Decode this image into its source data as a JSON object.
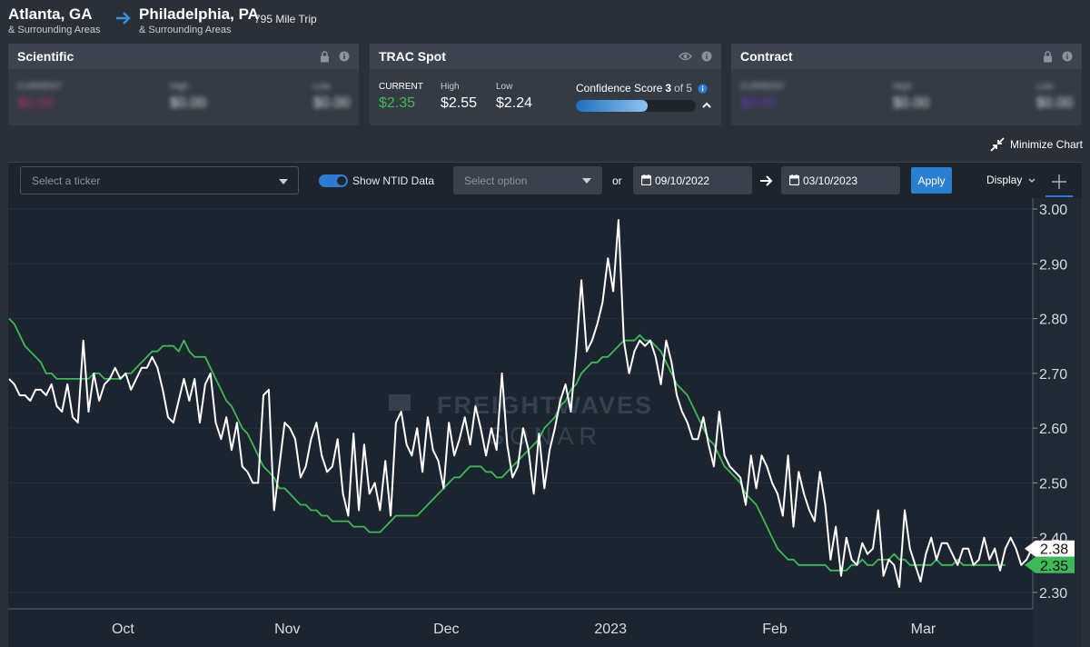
{
  "route": {
    "origin_city": "Atlanta, GA",
    "origin_sub": "& Surrounding Areas",
    "dest_city": "Philadelphia, PA",
    "dest_sub": "& Surrounding Areas",
    "trip": "795 Mile Trip"
  },
  "cards": {
    "scientific": {
      "title": "Scientific",
      "current_label": "CURRENT",
      "current": "$0.00",
      "high_label": "High",
      "high": "$0.00",
      "low_label": "Low",
      "low": "$0.00"
    },
    "trac": {
      "title": "TRAC Spot",
      "current_label": "CURRENT",
      "current": "$2.35",
      "high_label": "High",
      "high": "$2.55",
      "low_label": "Low",
      "low": "$2.24",
      "confidence_label": "Confidence Score",
      "confidence_value": "3",
      "confidence_of": "of 5",
      "confidence_fraction": 0.6
    },
    "contract": {
      "title": "Contract",
      "current_label": "CURRENT",
      "current": "$0.00",
      "high_label": "High",
      "high": "$0.00",
      "low_label": "Low",
      "low": "$0.00"
    }
  },
  "minimize_label": "Minimize Chart",
  "toolbar": {
    "ticker_placeholder": "Select a ticker",
    "toggle_label": "Show NTID Data",
    "option_placeholder": "Select option",
    "or": "or",
    "start_date": "09/10/2022",
    "end_date": "03/10/2023",
    "apply": "Apply",
    "display": "Display"
  },
  "colors": {
    "white_series": "#ffffff",
    "green_series": "#3fb85a",
    "accent": "#2a7fd0",
    "scientific_value": "#c0306a",
    "contract_value": "#6a3bd0",
    "current_green": "#3fb85a"
  },
  "chart_data": {
    "type": "line",
    "watermark_top": "FREIGHTWAVES",
    "watermark_bottom": "SONAR",
    "ylim": [
      2.27,
      3.02
    ],
    "y_ticks": [
      "3.00",
      "2.90",
      "2.80",
      "2.70",
      "2.60",
      "2.50",
      "2.40",
      "2.30"
    ],
    "x_ticks": [
      {
        "label": "Oct",
        "x": 21.5
      },
      {
        "label": "Nov",
        "x": 52.5
      },
      {
        "label": "Dec",
        "x": 82.5
      },
      {
        "label": "2023",
        "x": 113.5
      },
      {
        "label": "Feb",
        "x": 144.5
      },
      {
        "label": "Mar",
        "x": 172.5
      }
    ],
    "last_labels": [
      "2.38",
      "2.35"
    ],
    "series": [
      {
        "color": "#ffffff",
        "values": [
          2.69,
          2.68,
          2.66,
          2.66,
          2.65,
          2.67,
          2.67,
          2.66,
          2.68,
          2.64,
          2.63,
          2.68,
          2.62,
          2.61,
          2.76,
          2.63,
          2.7,
          2.65,
          2.68,
          2.69,
          2.71,
          2.69,
          2.7,
          2.67,
          2.69,
          2.71,
          2.71,
          2.73,
          2.71,
          2.67,
          2.62,
          2.61,
          2.65,
          2.69,
          2.65,
          2.69,
          2.61,
          2.68,
          2.7,
          2.61,
          2.58,
          2.62,
          2.56,
          2.61,
          2.53,
          2.52,
          2.5,
          2.5,
          2.66,
          2.67,
          2.45,
          2.53,
          2.61,
          2.6,
          2.58,
          2.51,
          2.53,
          2.58,
          2.61,
          2.55,
          2.52,
          2.53,
          2.58,
          2.48,
          2.44,
          2.59,
          2.45,
          2.57,
          2.48,
          2.5,
          2.45,
          2.54,
          2.44,
          2.61,
          2.63,
          2.57,
          2.55,
          2.6,
          2.52,
          2.62,
          2.56,
          2.54,
          2.49,
          2.61,
          2.55,
          2.58,
          2.62,
          2.57,
          2.64,
          2.6,
          2.55,
          2.6,
          2.56,
          2.7,
          2.57,
          2.51,
          2.53,
          2.6,
          2.56,
          2.48,
          2.59,
          2.49,
          2.56,
          2.6,
          2.65,
          2.68,
          2.63,
          2.74,
          2.87,
          2.74,
          2.76,
          2.79,
          2.83,
          2.91,
          2.85,
          2.98,
          2.76,
          2.7,
          2.74,
          2.76,
          2.75,
          2.76,
          2.73,
          2.68,
          2.76,
          2.72,
          2.66,
          2.63,
          2.61,
          2.58,
          2.58,
          2.62,
          2.57,
          2.53,
          2.63,
          2.55,
          2.53,
          2.52,
          2.51,
          2.46,
          2.55,
          2.49,
          2.55,
          2.53,
          2.5,
          2.48,
          2.44,
          2.55,
          2.42,
          2.52,
          2.48,
          2.45,
          2.43,
          2.52,
          2.46,
          2.36,
          2.42,
          2.33,
          2.4,
          2.36,
          2.35,
          2.39,
          2.37,
          2.38,
          2.45,
          2.33,
          2.36,
          2.35,
          2.31,
          2.45,
          2.38,
          2.35,
          2.32,
          2.37,
          2.4,
          2.36,
          2.39,
          2.39,
          2.37,
          2.35,
          2.38,
          2.38,
          2.35,
          2.36,
          2.4,
          2.36,
          2.38,
          2.34,
          2.38,
          2.4,
          2.38,
          2.35,
          2.36,
          2.38
        ]
      },
      {
        "color": "#3fb85a",
        "values": [
          2.8,
          2.79,
          2.77,
          2.75,
          2.74,
          2.73,
          2.72,
          2.7,
          2.7,
          2.69,
          2.69,
          2.69,
          2.69,
          2.69,
          2.69,
          2.69,
          2.7,
          2.7,
          2.69,
          2.69,
          2.69,
          2.69,
          2.7,
          2.7,
          2.71,
          2.72,
          2.73,
          2.74,
          2.74,
          2.75,
          2.75,
          2.75,
          2.74,
          2.76,
          2.74,
          2.73,
          2.73,
          2.73,
          2.71,
          2.69,
          2.67,
          2.65,
          2.64,
          2.62,
          2.6,
          2.59,
          2.57,
          2.55,
          2.53,
          2.52,
          2.51,
          2.49,
          2.49,
          2.48,
          2.47,
          2.46,
          2.46,
          2.45,
          2.45,
          2.44,
          2.44,
          2.43,
          2.43,
          2.43,
          2.43,
          2.42,
          2.42,
          2.42,
          2.41,
          2.41,
          2.41,
          2.42,
          2.43,
          2.44,
          2.44,
          2.44,
          2.44,
          2.44,
          2.45,
          2.46,
          2.47,
          2.48,
          2.49,
          2.5,
          2.51,
          2.51,
          2.52,
          2.53,
          2.53,
          2.53,
          2.52,
          2.52,
          2.51,
          2.51,
          2.52,
          2.53,
          2.54,
          2.55,
          2.56,
          2.57,
          2.58,
          2.6,
          2.61,
          2.62,
          2.64,
          2.65,
          2.67,
          2.68,
          2.7,
          2.71,
          2.72,
          2.72,
          2.73,
          2.73,
          2.74,
          2.75,
          2.76,
          2.76,
          2.76,
          2.77,
          2.76,
          2.76,
          2.75,
          2.74,
          2.72,
          2.7,
          2.68,
          2.67,
          2.66,
          2.64,
          2.62,
          2.6,
          2.58,
          2.57,
          2.55,
          2.53,
          2.52,
          2.51,
          2.5,
          2.48,
          2.47,
          2.46,
          2.44,
          2.42,
          2.4,
          2.38,
          2.37,
          2.36,
          2.36,
          2.35,
          2.35,
          2.35,
          2.35,
          2.35,
          2.35,
          2.34,
          2.34,
          2.34,
          2.34,
          2.35,
          2.35,
          2.36,
          2.35,
          2.35,
          2.36,
          2.36,
          2.36,
          2.37,
          2.36,
          2.36,
          2.35,
          2.35,
          2.35,
          2.35,
          2.35,
          2.36,
          2.35,
          2.35,
          2.35,
          2.36,
          2.35,
          2.35,
          2.35,
          2.35,
          2.35,
          2.35,
          2.35,
          2.35,
          2.35
        ]
      }
    ]
  }
}
